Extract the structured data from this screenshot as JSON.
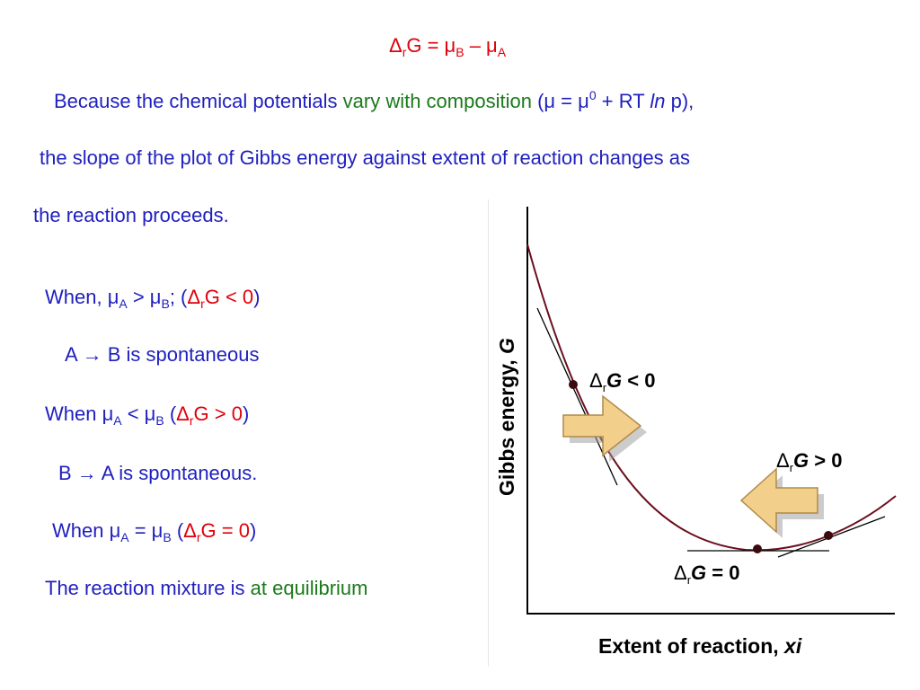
{
  "title": {
    "delta": "Δ",
    "r": "r",
    "g": "G = μ",
    "b": "B",
    "minus": " – μ",
    "a": "A"
  },
  "para": {
    "line1_a": "Because the chemical potentials ",
    "line1_b": "vary with composition",
    "line1_c": " (μ = μ",
    "line1_sup": "0",
    "line1_d": " + RT ",
    "line1_ln": "ln",
    "line1_e": " p),",
    "line2": "the slope of the plot of Gibbs energy against extent of reaction changes as",
    "line3": "the reaction proceeds."
  },
  "cases": [
    {
      "w": "When, μ",
      "s1": "A",
      "op": " > μ",
      "s2": "B",
      "semi": "; (",
      "d": "Δ",
      "r": "r",
      "cond": "G < 0",
      "close": ")"
    },
    {
      "w": "When μ",
      "s1": "A",
      "op": " < μ",
      "s2": "B",
      "semi": " (",
      "d": "Δ",
      "r": "r",
      "cond": "G  > 0",
      "close": ")"
    },
    {
      "w": "When μ",
      "s1": "A",
      "op": " = μ",
      "s2": "B",
      "semi": " (",
      "d": "Δ",
      "r": "r",
      "cond": "G = 0",
      "close": ")"
    }
  ],
  "results": {
    "r1_a": "A ",
    "r1_arrow": "→",
    "r1_b": " B  is spontaneous",
    "r2_a": "B ",
    "r2_arrow": "→",
    "r2_b": " A is spontaneous.",
    "r3_a": "The reaction mixture is ",
    "r3_b": "at equilibrium"
  },
  "figure": {
    "ylabel": "Gibbs energy, ",
    "ylabel_var": "G",
    "xlabel": "Extent of reaction, ",
    "xlabel_var": "xi",
    "label_neg": {
      "d": "Δ",
      "r": "r",
      "g": "G",
      "rest": " < 0"
    },
    "label_pos": {
      "d": "Δ",
      "r": "r",
      "g": "G",
      "rest": " > 0"
    },
    "label_zero": {
      "d": "Δ",
      "r": "r",
      "g": "G",
      "rest": " = 0"
    },
    "curve_color": "#6b0f1e",
    "arrow_fill": "#f2cf8a",
    "arrow_stroke": "#b08a4a"
  }
}
